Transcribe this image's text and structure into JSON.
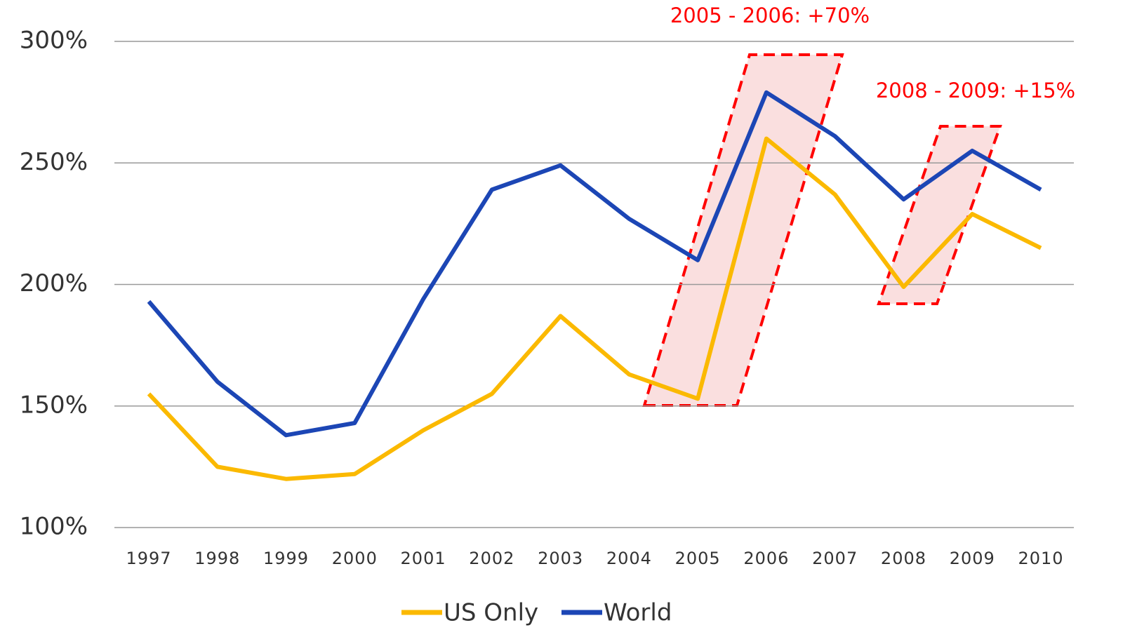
{
  "chart_data": {
    "type": "line",
    "categories": [
      "1997",
      "1998",
      "1999",
      "2000",
      "2001",
      "2002",
      "2003",
      "2004",
      "2005",
      "2006",
      "2007",
      "2008",
      "2009",
      "2010"
    ],
    "series": [
      {
        "name": "US Only",
        "color": "#fbb900",
        "values": [
          155,
          125,
          120,
          122,
          140,
          155,
          187,
          163,
          153,
          260,
          237,
          199,
          229,
          215
        ]
      },
      {
        "name": "World",
        "color": "#1c46b5",
        "values": [
          193,
          160,
          138,
          143,
          194,
          239,
          249,
          227,
          210,
          279,
          261,
          235,
          255,
          239
        ]
      }
    ],
    "ylim": [
      100,
      300
    ],
    "yticks": [
      {
        "value": 100,
        "label": "100%"
      },
      {
        "value": 150,
        "label": "150%"
      },
      {
        "value": 200,
        "label": "200%"
      },
      {
        "value": 250,
        "label": "250%"
      },
      {
        "value": 300,
        "label": "300%"
      }
    ],
    "grid": true,
    "legend": "bottom",
    "annotations": [
      "2005 - 2006: +70%",
      "2008 - 2009: +15%"
    ]
  }
}
